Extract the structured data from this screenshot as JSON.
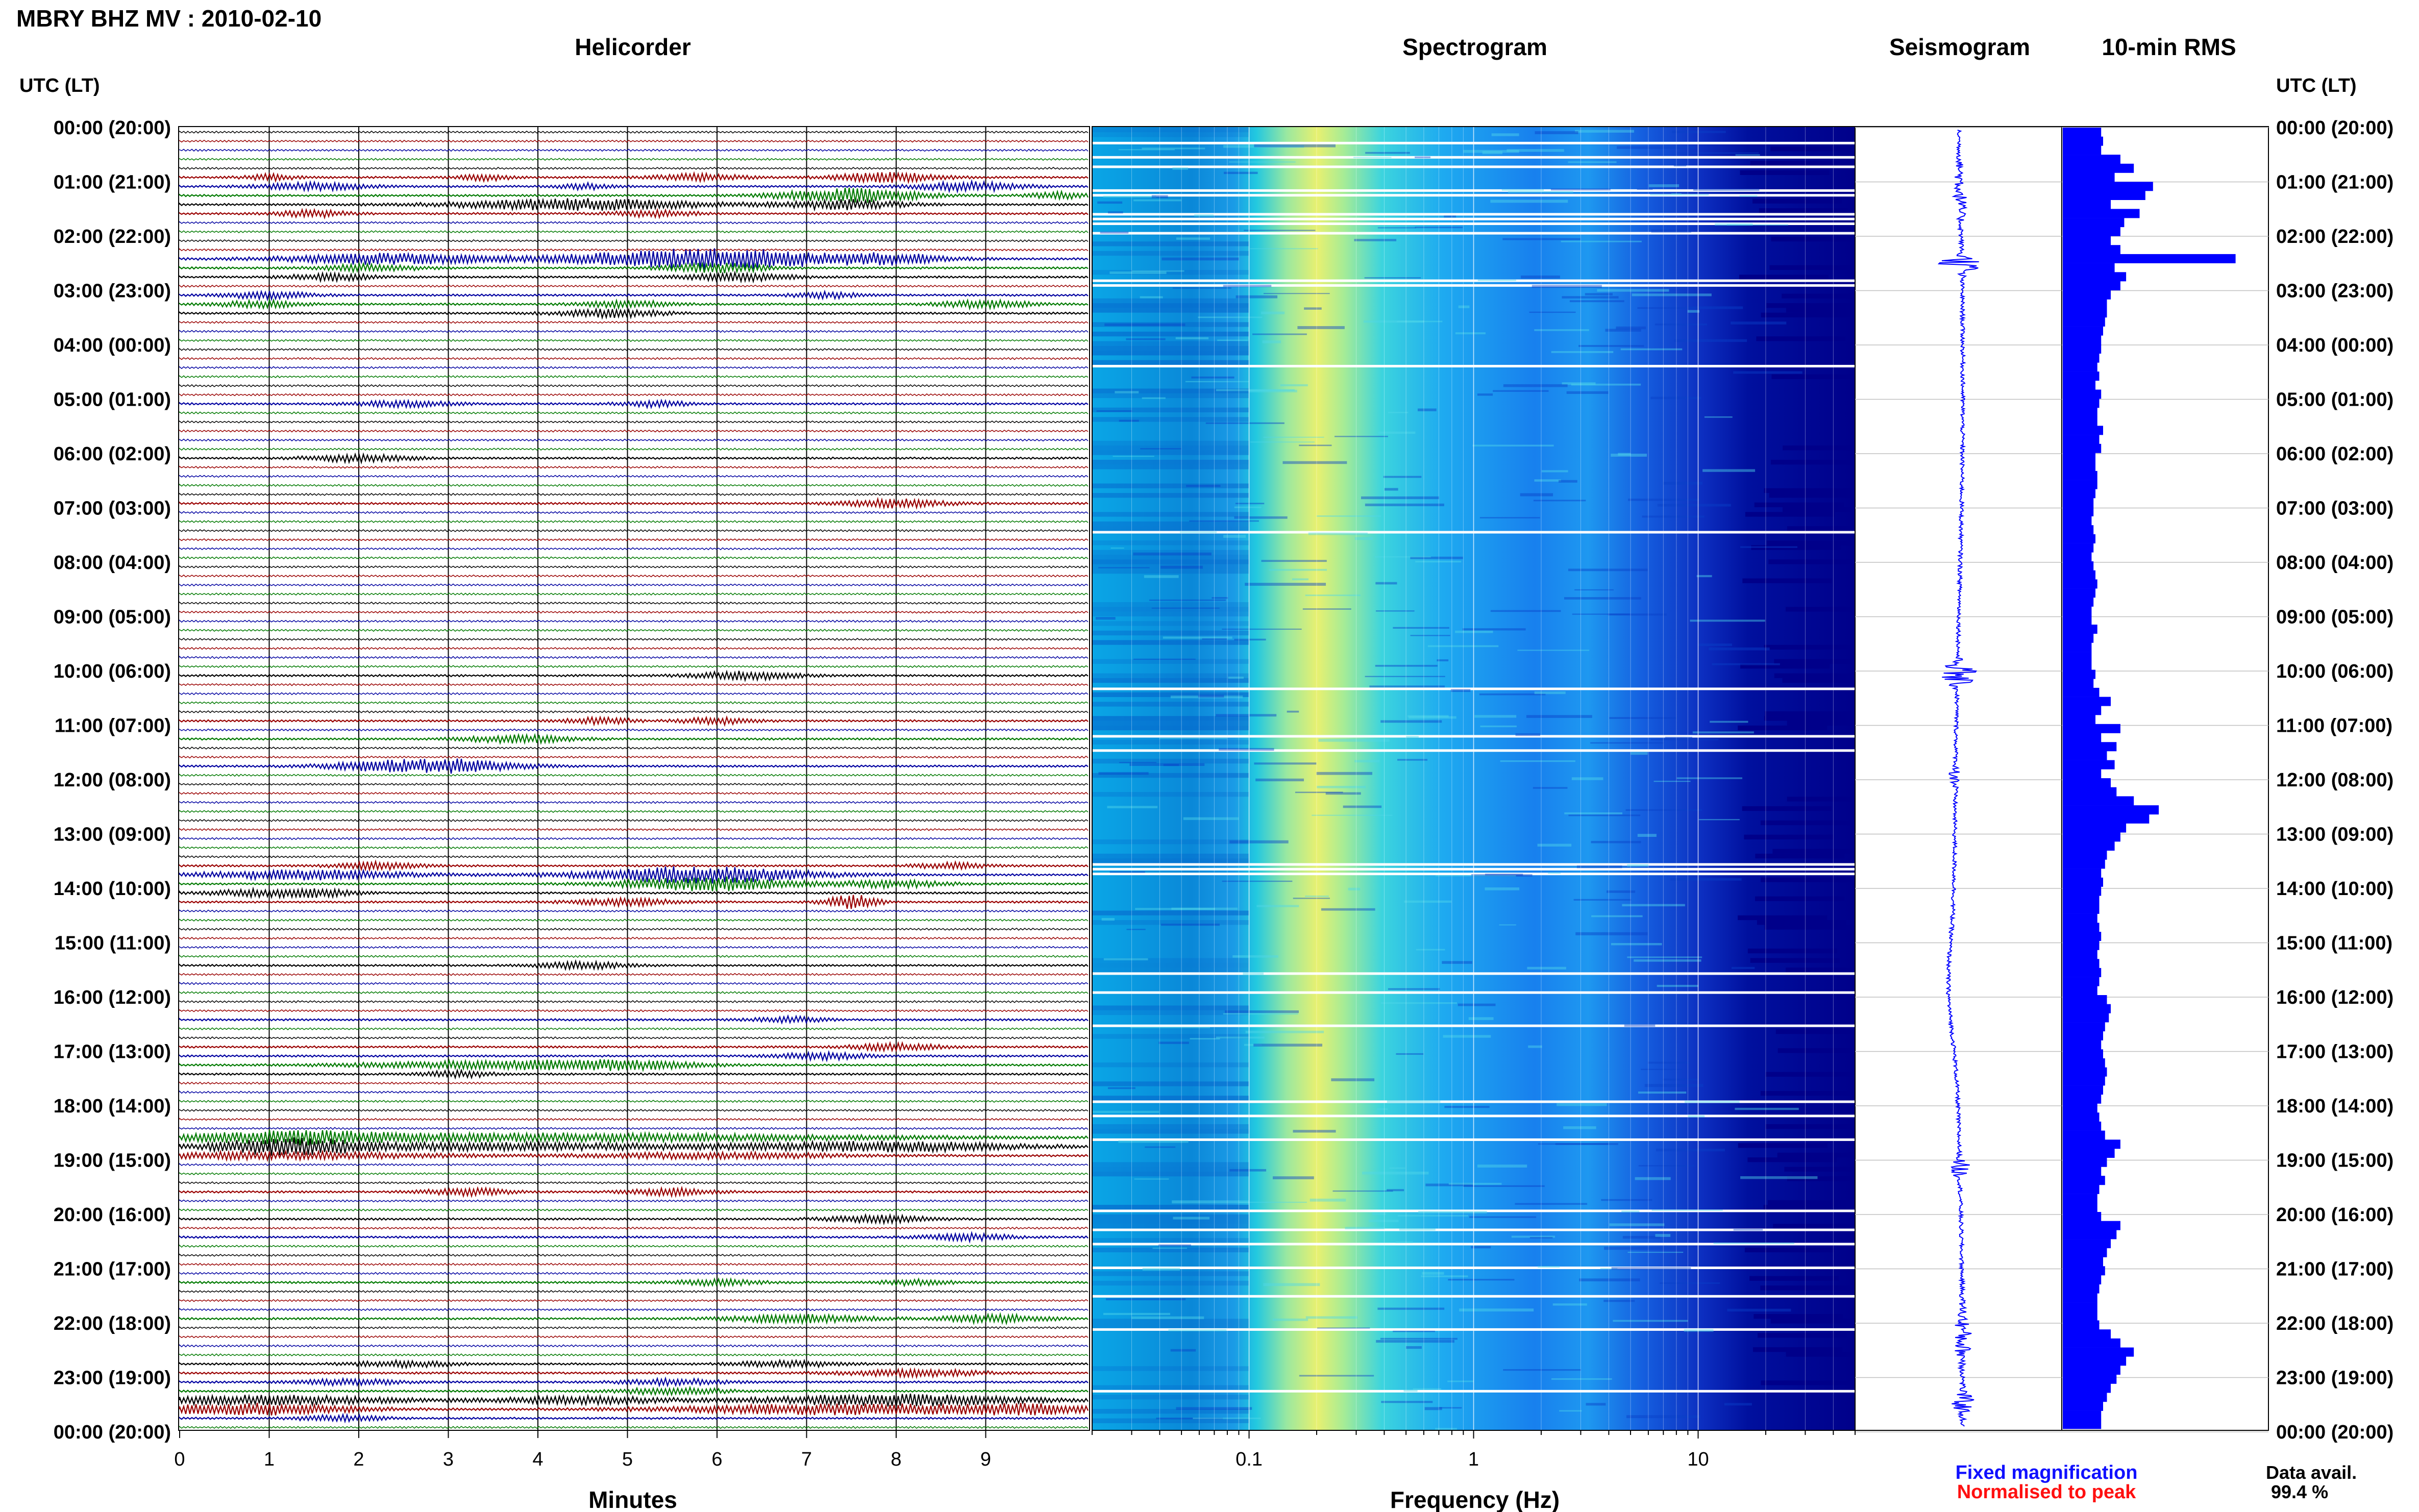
{
  "header": {
    "title": "MBRY BHZ MV : 2010-02-10",
    "utc_lt_left": "UTC (LT)",
    "utc_lt_right": "UTC (LT)"
  },
  "panels": {
    "helicorder": "Helicorder",
    "spectrogram": "Spectrogram",
    "seismogram": "Seismogram",
    "rms": "10-min RMS"
  },
  "axes": {
    "minutes_label": "Minutes",
    "frequency_label": "Frequency (Hz)",
    "minute_ticks": [
      "0",
      "1",
      "2",
      "3",
      "4",
      "5",
      "6",
      "7",
      "8",
      "9"
    ],
    "frequency_ticks": [
      "0.1",
      "1",
      "10"
    ]
  },
  "time_labels": [
    "00:00 (20:00)",
    "01:00 (21:00)",
    "02:00 (22:00)",
    "03:00 (23:00)",
    "04:00 (00:00)",
    "05:00 (01:00)",
    "06:00 (02:00)",
    "07:00 (03:00)",
    "08:00 (04:00)",
    "09:00 (05:00)",
    "10:00 (06:00)",
    "11:00 (07:00)",
    "12:00 (08:00)",
    "13:00 (09:00)",
    "14:00 (10:00)",
    "15:00 (11:00)",
    "16:00 (12:00)",
    "17:00 (13:00)",
    "18:00 (14:00)",
    "19:00 (15:00)",
    "20:00 (16:00)",
    "21:00 (17:00)",
    "22:00 (18:00)",
    "23:00 (19:00)",
    "00:00 (20:00)"
  ],
  "legend": {
    "fixed": "Fixed magnification",
    "normalised": "Normalised to peak",
    "fixed_color": "#1010ff",
    "normalised_color": "#ff1010",
    "data_avail_label": "Data avail.",
    "data_avail_value": "99.4 %"
  },
  "colors": {
    "helicorder_traces": [
      "#000000",
      "#990000",
      "#0000a0",
      "#007a00"
    ],
    "rms_bar": "#0000ff",
    "seismogram": "#0000ff",
    "spectrogram_dark": "#00008b"
  },
  "chart_data": [
    {
      "type": "line",
      "title": "Helicorder",
      "xlabel": "Minutes",
      "x_ticks": [
        0,
        1,
        2,
        3,
        4,
        5,
        6,
        7,
        8,
        9
      ],
      "xlim": [
        0,
        10
      ],
      "rows": 144,
      "row_minutes": 10,
      "y_ticks": [
        "00:00 (20:00)",
        "01:00 (21:00)",
        "02:00 (22:00)",
        "03:00 (23:00)",
        "04:00 (00:00)",
        "05:00 (01:00)",
        "06:00 (02:00)",
        "07:00 (03:00)",
        "08:00 (04:00)",
        "09:00 (05:00)",
        "10:00 (06:00)",
        "11:00 (07:00)",
        "12:00 (08:00)",
        "13:00 (09:00)",
        "14:00 (10:00)",
        "15:00 (11:00)",
        "16:00 (12:00)",
        "17:00 (13:00)",
        "18:00 (14:00)",
        "19:00 (15:00)",
        "20:00 (16:00)",
        "21:00 (17:00)",
        "22:00 (18:00)",
        "23:00 (19:00)",
        "00:00 (20:00)"
      ],
      "trace_colors": [
        "#000000",
        "#990000",
        "#0000a0",
        "#007a00"
      ]
    },
    {
      "type": "heatmap",
      "title": "Spectrogram",
      "xlabel": "Frequency (Hz)",
      "x_scale": "log",
      "xlim": [
        0.02,
        50
      ],
      "x_ticks": [
        0.1,
        1,
        10
      ],
      "peak_band_hz": [
        0.15,
        0.35
      ]
    },
    {
      "type": "line",
      "title": "Seismogram",
      "orientation": "vertical"
    },
    {
      "type": "bar",
      "title": "10-min RMS",
      "orientation": "horizontal",
      "values": [
        0.2,
        0.21,
        0.2,
        0.3,
        0.37,
        0.27,
        0.47,
        0.43,
        0.25,
        0.4,
        0.32,
        0.3,
        0.25,
        0.3,
        0.9,
        0.27,
        0.33,
        0.3,
        0.25,
        0.23,
        0.23,
        0.22,
        0.21,
        0.2,
        0.2,
        0.19,
        0.18,
        0.19,
        0.17,
        0.2,
        0.19,
        0.18,
        0.18,
        0.21,
        0.19,
        0.2,
        0.17,
        0.17,
        0.18,
        0.18,
        0.17,
        0.16,
        0.16,
        0.15,
        0.16,
        0.17,
        0.16,
        0.15,
        0.16,
        0.17,
        0.18,
        0.17,
        0.16,
        0.15,
        0.15,
        0.18,
        0.16,
        0.15,
        0.15,
        0.15,
        0.17,
        0.16,
        0.19,
        0.25,
        0.2,
        0.17,
        0.3,
        0.2,
        0.28,
        0.23,
        0.27,
        0.2,
        0.25,
        0.28,
        0.37,
        0.5,
        0.45,
        0.33,
        0.3,
        0.27,
        0.23,
        0.22,
        0.2,
        0.21,
        0.2,
        0.19,
        0.19,
        0.18,
        0.19,
        0.2,
        0.19,
        0.18,
        0.19,
        0.2,
        0.19,
        0.18,
        0.23,
        0.25,
        0.24,
        0.22,
        0.21,
        0.2,
        0.21,
        0.22,
        0.23,
        0.22,
        0.21,
        0.2,
        0.18,
        0.19,
        0.2,
        0.22,
        0.3,
        0.27,
        0.23,
        0.2,
        0.22,
        0.19,
        0.18,
        0.18,
        0.2,
        0.3,
        0.28,
        0.25,
        0.23,
        0.21,
        0.22,
        0.2,
        0.19,
        0.18,
        0.18,
        0.18,
        0.19,
        0.25,
        0.3,
        0.37,
        0.33,
        0.3,
        0.28,
        0.25,
        0.23,
        0.21,
        0.2,
        0.2
      ]
    }
  ]
}
